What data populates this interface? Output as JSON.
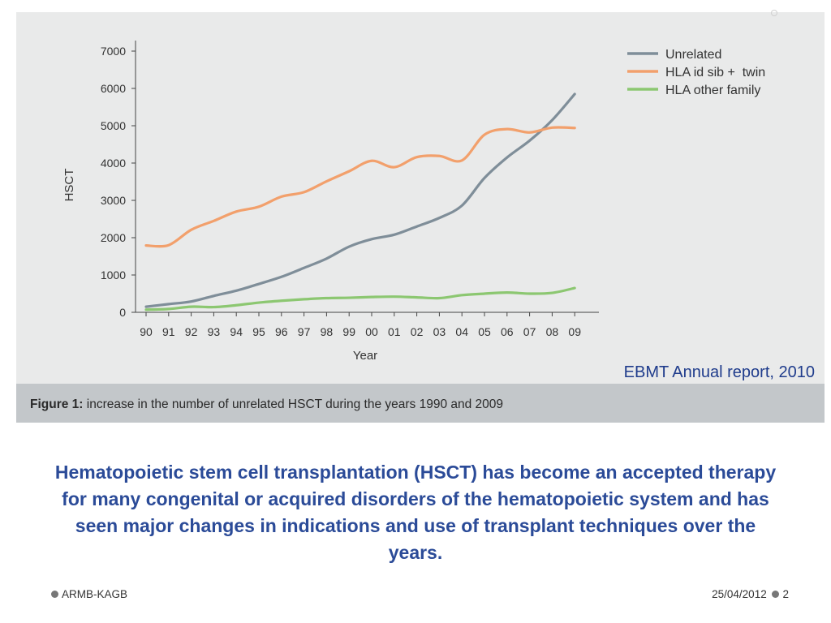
{
  "chart_data": {
    "type": "line",
    "title": "",
    "xlabel": "Year",
    "ylabel": "HSCT",
    "x": [
      "90",
      "91",
      "92",
      "93",
      "94",
      "95",
      "96",
      "97",
      "98",
      "99",
      "00",
      "01",
      "02",
      "03",
      "04",
      "05",
      "06",
      "07",
      "08",
      "09"
    ],
    "ylim": [
      0,
      7000
    ],
    "yticks": [
      0,
      1000,
      2000,
      3000,
      4000,
      5000,
      6000,
      7000
    ],
    "grid": false,
    "legend": "top-right",
    "series": [
      {
        "name": "Unrelated",
        "color": "#7f8e99",
        "values": [
          150,
          220,
          290,
          440,
          580,
          760,
          950,
          1190,
          1440,
          1760,
          1960,
          2080,
          2300,
          2530,
          2860,
          3600,
          4150,
          4600,
          5150,
          5850
        ]
      },
      {
        "name": "HLA id sib +  twin",
        "color": "#f2a06c",
        "values": [
          1790,
          1800,
          2210,
          2450,
          2700,
          2830,
          3100,
          3220,
          3510,
          3780,
          4060,
          3890,
          4160,
          4190,
          4070,
          4760,
          4910,
          4820,
          4950,
          4940
        ]
      },
      {
        "name": "HLA other family",
        "color": "#8cc771",
        "values": [
          70,
          90,
          150,
          140,
          190,
          260,
          310,
          350,
          380,
          390,
          410,
          420,
          400,
          380,
          460,
          500,
          530,
          500,
          520,
          650
        ]
      }
    ]
  },
  "caption": {
    "label": "Figure 1:",
    "text": " increase in the number of unrelated HSCT during the years 1990 and 2009"
  },
  "source": "EBMT Annual report, 2010",
  "body_text": "Hematopoietic stem cell transplantation (HSCT) has become an accepted therapy for many congenital or acquired disorders of the hematopoietic system and has seen major changes in indications and use of transplant techniques over the years.",
  "footer": {
    "left": "ARMB-KAGB",
    "date": "25/04/2012",
    "page": "2"
  }
}
